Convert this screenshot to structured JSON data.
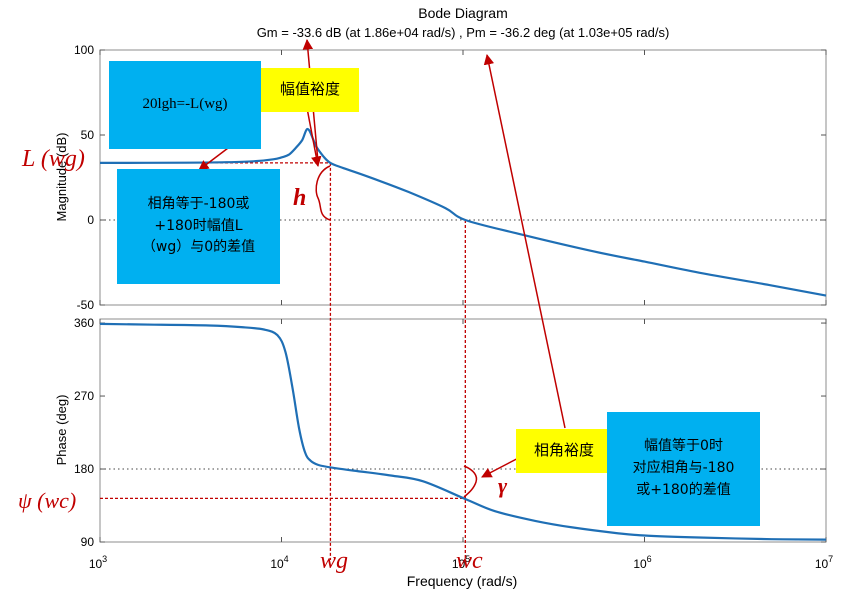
{
  "chart_data": {
    "type": "line",
    "title": "Bode Diagram",
    "subtitle": "Gm = -33.6 dB (at 1.86e+04 rad/s) ,  Pm = -36.2 deg (at 1.03e+05 rad/s)",
    "xlabel": "Frequency  (rad/s)",
    "xscale": "log",
    "xlim": [
      1000,
      10000000
    ],
    "x_ticks": [
      {
        "base": "10",
        "exp": "3",
        "value": 1000
      },
      {
        "base": "10",
        "exp": "4",
        "value": 10000
      },
      {
        "base": "10",
        "exp": "5",
        "value": 100000
      },
      {
        "base": "10",
        "exp": "6",
        "value": 1000000
      },
      {
        "base": "10",
        "exp": "7",
        "value": 10000000
      }
    ],
    "magnitude": {
      "ylabel": "Magnitude (dB)",
      "ylim": [
        -50,
        100
      ],
      "yticks": [
        "100",
        "50",
        "0",
        "-50"
      ],
      "ytick_values": [
        100,
        50,
        0,
        -50
      ],
      "zero_line": 0,
      "series": [
        {
          "x": [
            1000,
            3000,
            5000,
            7000,
            9000,
            10000,
            11000,
            12000,
            13000,
            14000,
            15500,
            17000,
            18600,
            22000,
            30000,
            50000,
            80000,
            103000,
            200000,
            500000,
            1000000,
            2000000,
            5000000,
            10000000
          ],
          "y": [
            33.6,
            33.7,
            34.0,
            34.5,
            35.7,
            36.8,
            38.5,
            42.5,
            47.0,
            53.5,
            43.5,
            37.5,
            33.6,
            30.5,
            25.5,
            16.5,
            7.0,
            0.0,
            -8.0,
            -18.0,
            -24.5,
            -31.0,
            -38.5,
            -44.5
          ]
        }
      ],
      "color": "#1f6fb5"
    },
    "phase": {
      "ylabel": "Phase (deg)",
      "ylim": [
        90,
        365
      ],
      "yticks": [
        "360",
        "270",
        "180",
        "90"
      ],
      "ytick_values": [
        360,
        270,
        180,
        90
      ],
      "ref_line": 180,
      "series": [
        {
          "x": [
            1000,
            2000,
            4000,
            6000,
            8000,
            9500,
            10500,
            11500,
            12500,
            13500,
            14500,
            16000,
            18600,
            25000,
            40000,
            60000,
            103000,
            150000,
            250000,
            400000,
            700000,
            1000000,
            2000000,
            5000000,
            10000000
          ],
          "y": [
            359,
            358,
            357,
            355,
            352,
            345,
            325,
            280,
            230,
            200,
            190,
            185,
            182,
            178,
            172,
            165,
            143,
            128,
            116,
            108,
            101,
            98,
            95.5,
            93.5,
            93
          ]
        }
      ],
      "color": "#1f6fb5"
    },
    "markers": {
      "wg": 18600,
      "wc": 103000,
      "L_wg": 33.6,
      "psi_wc": 143.8,
      "gain_crossover_db": 0
    }
  },
  "annotations": {
    "math_label": "20lgh=-L(wg)",
    "gain_margin_title": "幅值裕度",
    "gain_margin_desc": "相角等于-180或\n+180时幅值L\n（wg）与0的差值",
    "phase_margin_title": "相角裕度",
    "phase_margin_desc": "幅值等于0时\n对应相角与-180\n或+180的差值",
    "L_wg": "L (wg)",
    "psi_wc": "ψ (wc)",
    "h": "h",
    "gamma": "γ",
    "wg": "wg",
    "wc": "wc"
  },
  "colors": {
    "curve": "#1f6fb5",
    "annotation": "#c00000",
    "callout_blue": "#00b0f0",
    "callout_yellow": "#ffff00"
  }
}
